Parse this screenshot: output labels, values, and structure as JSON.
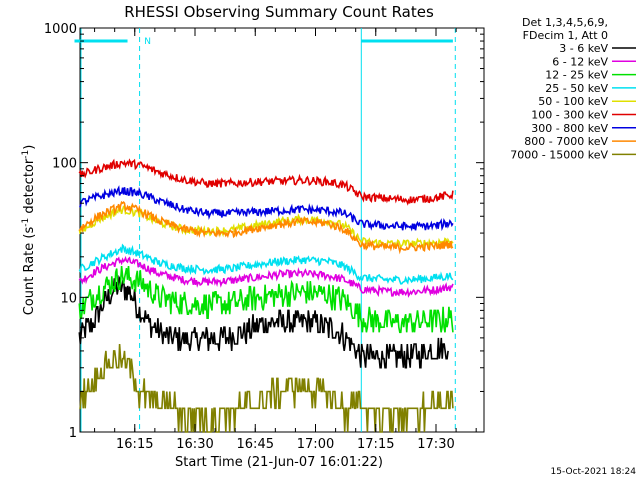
{
  "chart_data": {
    "type": "line",
    "title": "RHESSI Observing Summary Count Rates",
    "xlabel": "Start Time (21-Jun-07 16:01:22)",
    "ylabel_parts": [
      "Count Rate (s",
      "-1",
      " detector",
      "-1",
      ")"
    ],
    "y_scale": "log",
    "ylim": [
      1,
      1000
    ],
    "y_ticks": [
      {
        "value": 1,
        "label": "1"
      },
      {
        "value": 10,
        "label": "10"
      },
      {
        "value": 100,
        "label": "100"
      },
      {
        "value": 1000,
        "label": "1000"
      }
    ],
    "x_ticks": [
      "16:15",
      "16:30",
      "16:45",
      "17:00",
      "17:15",
      "17:30"
    ],
    "legend_header": [
      "Det 1,3,4,5,6,9,",
      "FDecim 1, Att 0"
    ],
    "legend_placement": "right, outside plot",
    "footer": "15-Oct-2021 18:24",
    "flags": {
      "label": "N",
      "color": "#00e0f0",
      "bars": [
        [
          16.0,
          16.22
        ],
        [
          17.19,
          17.57
        ]
      ],
      "dashed_times": [
        16.27,
        17.58
      ],
      "solid_times": [
        17.19
      ]
    },
    "series": [
      {
        "name": "3 - 6 keV",
        "color": "#000000",
        "points": [
          [
            16.02,
            5
          ],
          [
            16.08,
            6.5
          ],
          [
            16.13,
            9.5
          ],
          [
            16.18,
            12
          ],
          [
            16.23,
            11
          ],
          [
            16.27,
            8
          ],
          [
            16.32,
            6
          ],
          [
            16.4,
            5
          ],
          [
            16.5,
            4.8
          ],
          [
            16.6,
            5
          ],
          [
            16.7,
            5.5
          ],
          [
            16.8,
            6.5
          ],
          [
            16.9,
            6.5
          ],
          [
            17.0,
            6.5
          ],
          [
            17.1,
            5.5
          ],
          [
            17.15,
            4.5
          ],
          [
            17.19,
            3.7
          ],
          [
            17.3,
            3.6
          ],
          [
            17.4,
            3.7
          ],
          [
            17.48,
            4
          ],
          [
            17.55,
            4.3
          ]
        ]
      },
      {
        "name": "6 - 12 keV",
        "color": "#e000e0",
        "points": [
          [
            16.02,
            13
          ],
          [
            16.1,
            16
          ],
          [
            16.2,
            19
          ],
          [
            16.27,
            17.5
          ],
          [
            16.35,
            15
          ],
          [
            16.45,
            13.5
          ],
          [
            16.55,
            13
          ],
          [
            16.65,
            13.3
          ],
          [
            16.75,
            14
          ],
          [
            16.85,
            14.8
          ],
          [
            16.95,
            15
          ],
          [
            17.05,
            14.5
          ],
          [
            17.12,
            13.5
          ],
          [
            17.19,
            11.5
          ],
          [
            17.3,
            11
          ],
          [
            17.4,
            11
          ],
          [
            17.5,
            11.4
          ],
          [
            17.57,
            12
          ]
        ]
      },
      {
        "name": "12 - 25 keV",
        "color": "#00e000",
        "points": [
          [
            16.02,
            8
          ],
          [
            16.1,
            11
          ],
          [
            16.2,
            14.5
          ],
          [
            16.27,
            13
          ],
          [
            16.35,
            10
          ],
          [
            16.45,
            9
          ],
          [
            16.55,
            8.8
          ],
          [
            16.65,
            9
          ],
          [
            16.75,
            9.8
          ],
          [
            16.85,
            10.5
          ],
          [
            16.95,
            11
          ],
          [
            17.05,
            10.5
          ],
          [
            17.12,
            9.5
          ],
          [
            17.19,
            7
          ],
          [
            17.3,
            6.5
          ],
          [
            17.4,
            6.5
          ],
          [
            17.5,
            6.8
          ],
          [
            17.57,
            7
          ]
        ]
      },
      {
        "name": "25 - 50 keV",
        "color": "#00e0f0",
        "points": [
          [
            16.02,
            16
          ],
          [
            16.1,
            19
          ],
          [
            16.2,
            23
          ],
          [
            16.27,
            21
          ],
          [
            16.35,
            18
          ],
          [
            16.45,
            16.5
          ],
          [
            16.55,
            16
          ],
          [
            16.65,
            16.3
          ],
          [
            16.75,
            17.5
          ],
          [
            16.85,
            18.5
          ],
          [
            16.95,
            19
          ],
          [
            17.05,
            18.5
          ],
          [
            17.12,
            17
          ],
          [
            17.19,
            14
          ],
          [
            17.3,
            13.5
          ],
          [
            17.4,
            13.5
          ],
          [
            17.5,
            14
          ],
          [
            17.57,
            14.5
          ]
        ]
      },
      {
        "name": "50 - 100 keV",
        "color": "#e0e000",
        "points": [
          [
            16.02,
            30
          ],
          [
            16.1,
            38
          ],
          [
            16.2,
            45
          ],
          [
            16.27,
            42
          ],
          [
            16.35,
            36
          ],
          [
            16.45,
            32
          ],
          [
            16.55,
            31
          ],
          [
            16.65,
            31.5
          ],
          [
            16.75,
            34
          ],
          [
            16.85,
            36.5
          ],
          [
            16.95,
            38
          ],
          [
            17.05,
            37
          ],
          [
            17.12,
            34
          ],
          [
            17.19,
            26
          ],
          [
            17.3,
            25
          ],
          [
            17.4,
            25
          ],
          [
            17.5,
            25.5
          ],
          [
            17.57,
            26.5
          ]
        ]
      },
      {
        "name": "100 - 300 keV",
        "color": "#e00000",
        "points": [
          [
            16.02,
            80
          ],
          [
            16.1,
            90
          ],
          [
            16.2,
            100
          ],
          [
            16.27,
            96
          ],
          [
            16.35,
            85
          ],
          [
            16.45,
            75
          ],
          [
            16.55,
            70
          ],
          [
            16.65,
            70
          ],
          [
            16.75,
            72
          ],
          [
            16.85,
            73
          ],
          [
            16.95,
            74
          ],
          [
            17.05,
            72
          ],
          [
            17.12,
            68
          ],
          [
            17.19,
            56
          ],
          [
            17.3,
            54
          ],
          [
            17.4,
            53
          ],
          [
            17.5,
            55
          ],
          [
            17.57,
            58
          ]
        ]
      },
      {
        "name": "300 - 800 keV",
        "color": "#0000e0",
        "points": [
          [
            16.02,
            50
          ],
          [
            16.1,
            56
          ],
          [
            16.2,
            62
          ],
          [
            16.27,
            59
          ],
          [
            16.35,
            52
          ],
          [
            16.45,
            45
          ],
          [
            16.55,
            42
          ],
          [
            16.65,
            42
          ],
          [
            16.75,
            43
          ],
          [
            16.85,
            44
          ],
          [
            16.95,
            45
          ],
          [
            17.05,
            44
          ],
          [
            17.12,
            42
          ],
          [
            17.19,
            35
          ],
          [
            17.3,
            34
          ],
          [
            17.4,
            33.5
          ],
          [
            17.5,
            34
          ],
          [
            17.57,
            36
          ]
        ]
      },
      {
        "name": "800 - 7000 keV",
        "color": "#ff8800",
        "points": [
          [
            16.02,
            32
          ],
          [
            16.1,
            40
          ],
          [
            16.2,
            48
          ],
          [
            16.27,
            44
          ],
          [
            16.35,
            37
          ],
          [
            16.45,
            32
          ],
          [
            16.55,
            30
          ],
          [
            16.65,
            30
          ],
          [
            16.75,
            32.5
          ],
          [
            16.85,
            35
          ],
          [
            16.95,
            36.5
          ],
          [
            17.05,
            35.5
          ],
          [
            17.12,
            32
          ],
          [
            17.19,
            24.5
          ],
          [
            17.3,
            23.5
          ],
          [
            17.4,
            23.5
          ],
          [
            17.5,
            24
          ],
          [
            17.57,
            25
          ]
        ]
      },
      {
        "name": "7000 - 15000 keV",
        "color": "#808000",
        "points": [
          [
            16.02,
            1.7
          ],
          [
            16.07,
            2.3
          ],
          [
            16.12,
            3
          ],
          [
            16.18,
            3.6
          ],
          [
            16.23,
            3
          ],
          [
            16.27,
            2
          ],
          [
            16.35,
            1.6
          ],
          [
            16.45,
            1.4
          ],
          [
            16.55,
            1.3
          ],
          [
            16.65,
            1.4
          ],
          [
            16.75,
            1.6
          ],
          [
            16.85,
            2
          ],
          [
            16.95,
            2.2
          ],
          [
            17.05,
            1.9
          ],
          [
            17.12,
            1.5
          ],
          [
            17.19,
            1.5
          ],
          [
            17.3,
            1.4
          ],
          [
            17.4,
            1.4
          ],
          [
            17.5,
            1.5
          ],
          [
            17.57,
            1.6
          ]
        ]
      }
    ]
  }
}
